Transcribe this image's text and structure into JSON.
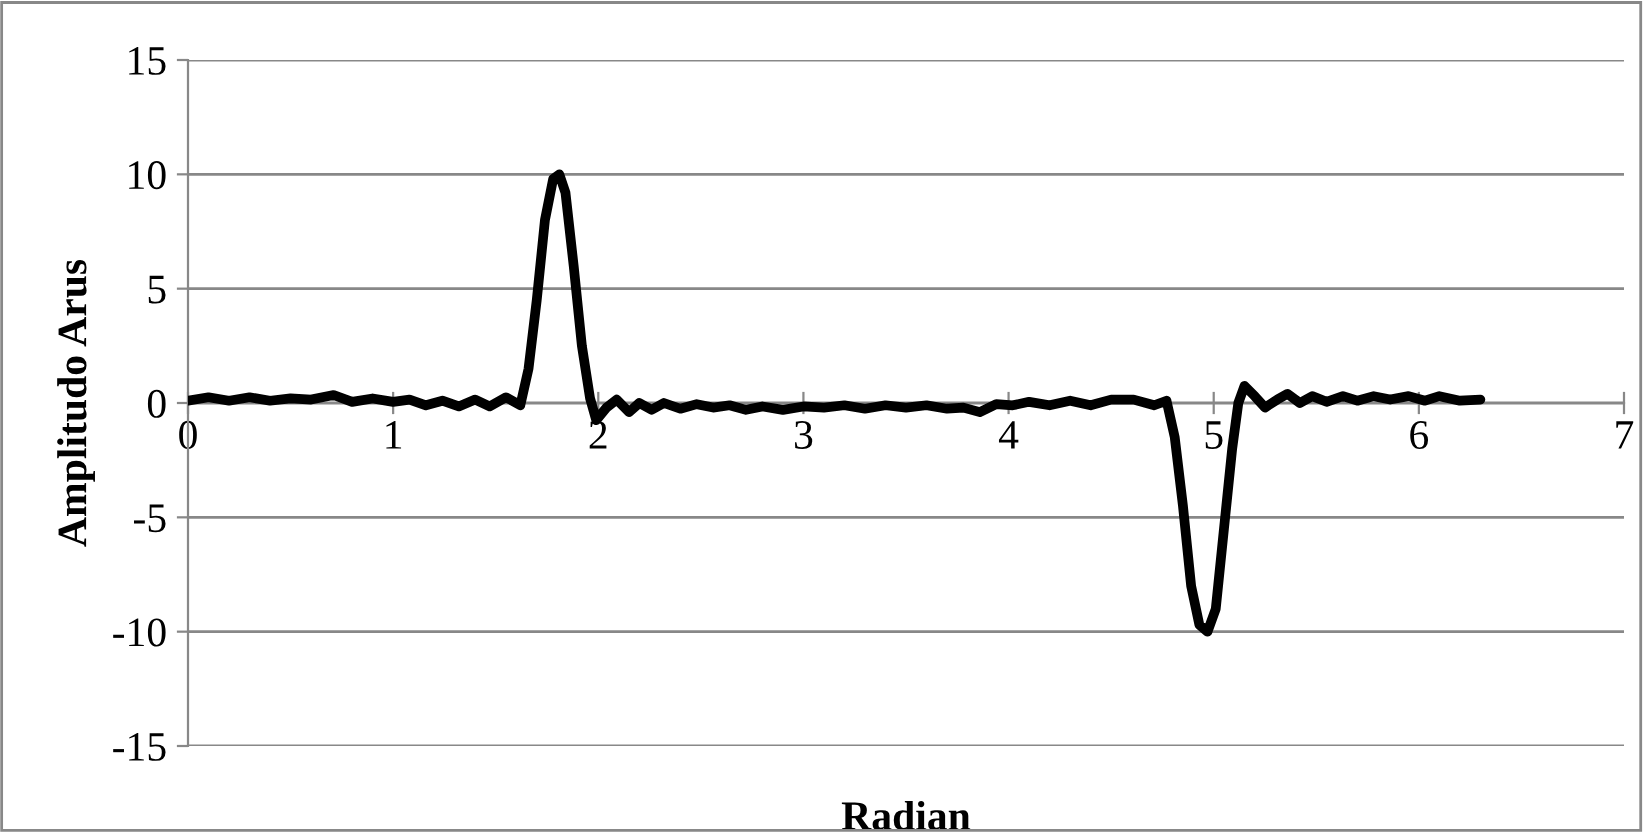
{
  "chart_data": {
    "type": "line",
    "xlabel": "Radian",
    "ylabel": "Amplitudo Arus",
    "xlim": [
      0,
      7
    ],
    "xticks": [
      0,
      1,
      2,
      3,
      4,
      5,
      6,
      7
    ],
    "ylim": [
      -15,
      15
    ],
    "yticks": [
      -15,
      -10,
      -5,
      0,
      5,
      10,
      15
    ],
    "grid": "y",
    "marker": "none",
    "line_style": "solid",
    "series": [
      {
        "color": "#000000",
        "x": [
          0,
          0.1,
          0.2,
          0.3,
          0.4,
          0.5,
          0.6,
          0.71,
          0.8,
          0.9,
          1.0,
          1.08,
          1.16,
          1.24,
          1.32,
          1.4,
          1.47,
          1.55,
          1.62,
          1.66,
          1.7,
          1.74,
          1.78,
          1.81,
          1.84,
          1.88,
          1.92,
          1.96,
          1.99,
          2.04,
          2.09,
          2.15,
          2.2,
          2.26,
          2.32,
          2.4,
          2.48,
          2.56,
          2.64,
          2.72,
          2.8,
          2.9,
          3.0,
          3.1,
          3.2,
          3.3,
          3.4,
          3.5,
          3.6,
          3.7,
          3.78,
          3.86,
          3.94,
          4.02,
          4.1,
          4.2,
          4.3,
          4.4,
          4.5,
          4.61,
          4.71,
          4.77,
          4.81,
          4.85,
          4.89,
          4.93,
          4.97,
          5.01,
          5.05,
          5.09,
          5.12,
          5.15,
          5.2,
          5.25,
          5.31,
          5.36,
          5.42,
          5.48,
          5.55,
          5.63,
          5.7,
          5.78,
          5.86,
          5.95,
          6.03,
          6.1,
          6.2,
          6.3
        ],
        "values": [
          0.1,
          0.25,
          0.1,
          0.25,
          0.1,
          0.2,
          0.15,
          0.35,
          0.05,
          0.2,
          0.05,
          0.15,
          -0.1,
          0.1,
          -0.15,
          0.15,
          -0.15,
          0.25,
          -0.1,
          1.5,
          4.5,
          8,
          9.8,
          10,
          9.2,
          6,
          2.5,
          0.2,
          -0.75,
          -0.2,
          0.15,
          -0.4,
          0,
          -0.3,
          0,
          -0.25,
          -0.05,
          -0.2,
          -0.1,
          -0.3,
          -0.15,
          -0.3,
          -0.15,
          -0.2,
          -0.1,
          -0.25,
          -0.1,
          -0.2,
          -0.1,
          -0.25,
          -0.2,
          -0.4,
          -0.05,
          -0.1,
          0.05,
          -0.1,
          0.1,
          -0.1,
          0.15,
          0.15,
          -0.1,
          0.1,
          -1.5,
          -4.5,
          -8,
          -9.7,
          -10,
          -9,
          -5.5,
          -2,
          0,
          0.75,
          0.3,
          -0.2,
          0.15,
          0.4,
          0,
          0.3,
          0.05,
          0.3,
          0.1,
          0.3,
          0.15,
          0.3,
          0.1,
          0.3,
          0.1,
          0.15
        ]
      }
    ]
  }
}
